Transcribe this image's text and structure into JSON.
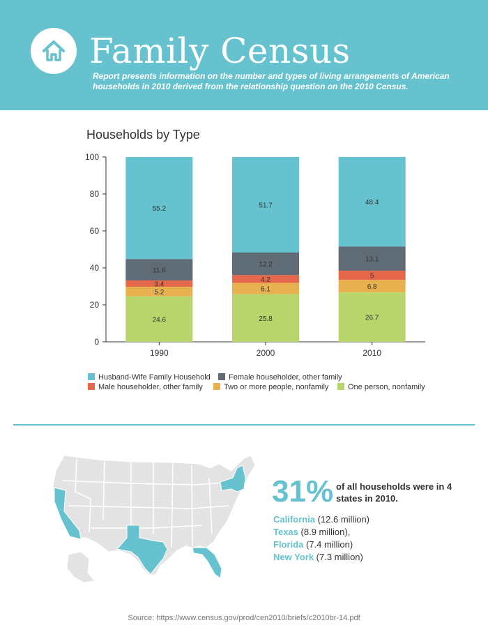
{
  "header": {
    "title": "Family Census",
    "subtitle": "Report presents information on the number and types of living arrangements of American households in 2010 derived from the relationship question on the 2010 Census.",
    "icon": "home-icon"
  },
  "colors": {
    "accent": "#66c2ce",
    "husband_wife": "#66c2ce",
    "female_householder": "#5f6b75",
    "male_householder": "#e5684d",
    "two_or_more": "#e8b14f",
    "one_person": "#b8d56c"
  },
  "chart_data": {
    "type": "bar",
    "stacked": true,
    "title": "Households by Type",
    "categories": [
      "1990",
      "2000",
      "2010"
    ],
    "series": [
      {
        "name": "One person, nonfamily",
        "values": [
          24.6,
          25.8,
          26.7
        ],
        "color": "#b8d56c"
      },
      {
        "name": "Two or more people, nonfamily",
        "values": [
          5.2,
          6.1,
          6.8
        ],
        "color": "#e8b14f"
      },
      {
        "name": "Male householder, other family",
        "values": [
          3.4,
          4.2,
          5
        ],
        "color": "#e5684d"
      },
      {
        "name": "Female householder, other family",
        "values": [
          11.6,
          12.2,
          13.1
        ],
        "color": "#5f6b75"
      },
      {
        "name": "Husband-Wife Family Household",
        "values": [
          55.2,
          51.7,
          48.4
        ],
        "color": "#66c2ce"
      }
    ],
    "legend_order": [
      "Husband-Wife Family Household",
      "Female householder, other family",
      "Male householder, other family",
      "Two or more people, nonfamily",
      "One person, nonfamily"
    ],
    "ylim": [
      0,
      100
    ],
    "yticks": [
      0,
      20,
      40,
      60,
      80,
      100
    ],
    "xlabel": "",
    "ylabel": "",
    "grid": false,
    "legend_position": "bottom"
  },
  "stats": {
    "percent": "31%",
    "text": "of all households were in 4 states in 2010.",
    "states": [
      {
        "name": "California",
        "value": "(12.6 million)"
      },
      {
        "name": "Texas",
        "value": "(8.9 million),"
      },
      {
        "name": "Florida",
        "value": "(7.4 million)"
      },
      {
        "name": "New York",
        "value": "(7.3 million)"
      }
    ]
  },
  "map": {
    "icon": "us-map-icon",
    "highlighted": [
      "California",
      "Texas",
      "Florida",
      "New York"
    ],
    "base_color": "#e3e3e3",
    "highlight_color": "#66c2ce"
  },
  "source": "Source: https://www.census.gov/prod/cen2010/briefs/c2010br-14.pdf"
}
